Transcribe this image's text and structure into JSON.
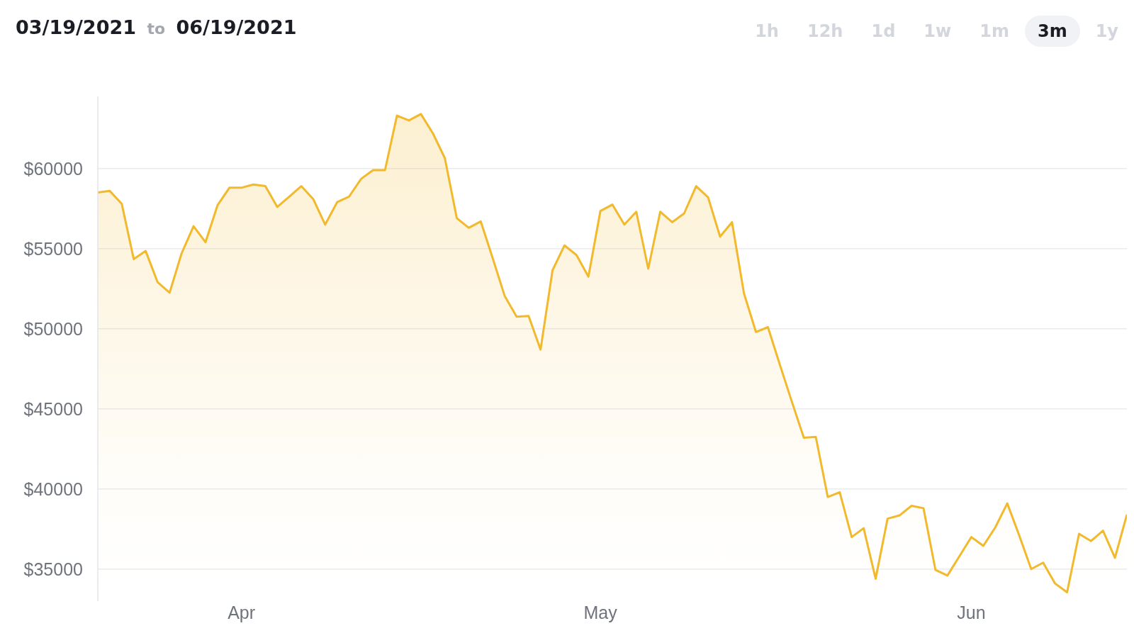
{
  "chart_data": {
    "type": "area",
    "title": "03/19/2021 to 06/19/2021",
    "annotations": [
      "1h",
      "12h",
      "1d",
      "1w",
      "1m",
      "3m",
      "1y"
    ],
    "x": [
      "2021-03-20",
      "2021-03-21",
      "2021-03-22",
      "2021-03-23",
      "2021-03-24",
      "2021-03-25",
      "2021-03-26",
      "2021-03-27",
      "2021-03-28",
      "2021-03-29",
      "2021-03-30",
      "2021-03-31",
      "2021-04-01",
      "2021-04-02",
      "2021-04-03",
      "2021-04-04",
      "2021-04-05",
      "2021-04-06",
      "2021-04-07",
      "2021-04-08",
      "2021-04-09",
      "2021-04-10",
      "2021-04-11",
      "2021-04-12",
      "2021-04-13",
      "2021-04-14",
      "2021-04-15",
      "2021-04-16",
      "2021-04-17",
      "2021-04-18",
      "2021-04-19",
      "2021-04-20",
      "2021-04-21",
      "2021-04-22",
      "2021-04-23",
      "2021-04-24",
      "2021-04-25",
      "2021-04-26",
      "2021-04-27",
      "2021-04-28",
      "2021-04-29",
      "2021-04-30",
      "2021-05-01",
      "2021-05-02",
      "2021-05-03",
      "2021-05-04",
      "2021-05-05",
      "2021-05-06",
      "2021-05-07",
      "2021-05-08",
      "2021-05-09",
      "2021-05-10",
      "2021-05-11",
      "2021-05-12",
      "2021-05-13",
      "2021-05-14",
      "2021-05-15",
      "2021-05-16",
      "2021-05-17",
      "2021-05-18",
      "2021-05-19",
      "2021-05-20",
      "2021-05-21",
      "2021-05-22",
      "2021-05-23",
      "2021-05-24",
      "2021-05-25",
      "2021-05-26",
      "2021-05-27",
      "2021-05-28",
      "2021-05-29",
      "2021-05-30",
      "2021-05-31",
      "2021-06-01",
      "2021-06-02",
      "2021-06-03",
      "2021-06-04",
      "2021-06-05",
      "2021-06-06",
      "2021-06-07",
      "2021-06-08",
      "2021-06-09",
      "2021-06-10",
      "2021-06-11",
      "2021-06-12",
      "2021-06-13",
      "2021-06-14"
    ],
    "values": [
      58500,
      58600,
      57800,
      54350,
      54850,
      52900,
      52250,
      54700,
      56400,
      55400,
      57700,
      58800,
      58800,
      59000,
      58900,
      57600,
      58250,
      58900,
      58100,
      56500,
      57900,
      58250,
      59350,
      59900,
      59900,
      63300,
      63000,
      63400,
      62200,
      60650,
      56900,
      56300,
      56700,
      54400,
      52050,
      50750,
      50800,
      48700,
      53650,
      55200,
      54600,
      53250,
      57350,
      57750,
      56500,
      57300,
      53750,
      57300,
      56650,
      57200,
      58900,
      58200,
      55750,
      56650,
      52200,
      49800,
      50100,
      47750,
      45450,
      43200,
      43250,
      39500,
      39800,
      37000,
      37550,
      34400,
      38150,
      38350,
      38950,
      38800,
      34950,
      34600,
      35800,
      37000,
      36450,
      37600,
      39100,
      37100,
      35000,
      35400,
      34100,
      33550,
      37200,
      36750,
      37400,
      35700,
      38400
    ],
    "color": "#f2b92c",
    "xlim": [
      "2021-03-20",
      "2021-06-14"
    ],
    "xticks": [
      {
        "value": "2021-04-01",
        "label": "Apr"
      },
      {
        "value": "2021-05-01",
        "label": "May"
      },
      {
        "value": "2021-06-01",
        "label": "Jun"
      }
    ],
    "ylim": [
      33000,
      64500
    ],
    "yticks": [
      {
        "value": 35000,
        "label": "$35000"
      },
      {
        "value": 40000,
        "label": "$40000"
      },
      {
        "value": 45000,
        "label": "$45000"
      },
      {
        "value": 50000,
        "label": "$50000"
      },
      {
        "value": 55000,
        "label": "$55000"
      },
      {
        "value": 60000,
        "label": "$60000"
      }
    ],
    "grid": "y"
  }
}
